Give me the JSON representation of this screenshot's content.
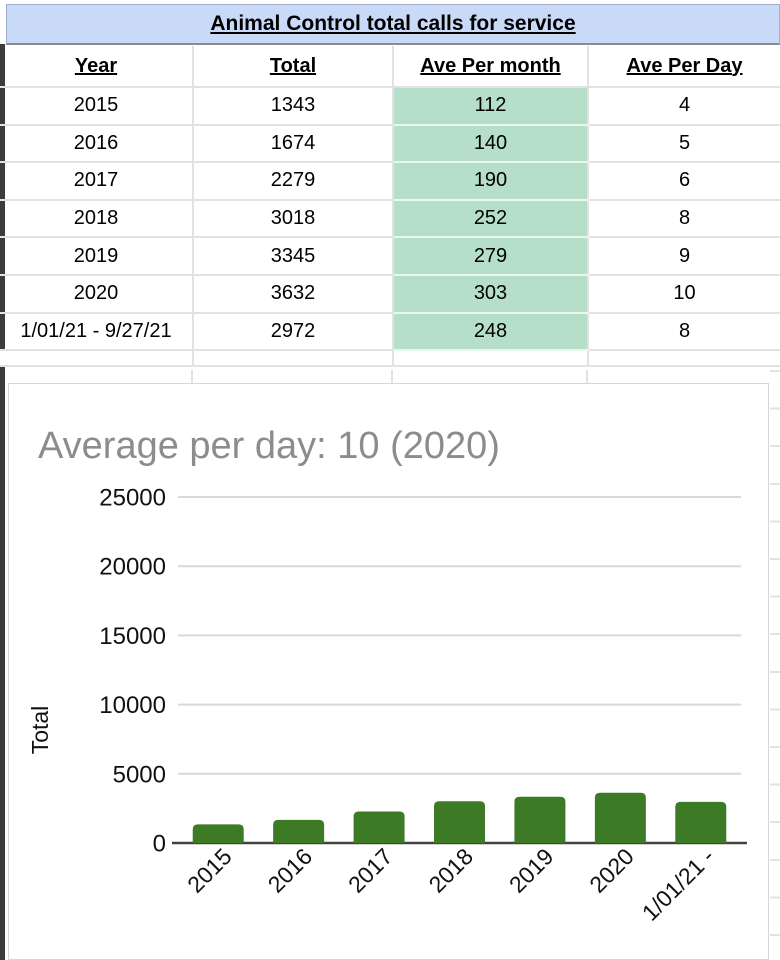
{
  "sheet": {
    "title": "Animal Control total calls for service",
    "columns": [
      "Year",
      "Total",
      "Ave Per month",
      "Ave Per Day"
    ],
    "rows": [
      [
        "2015",
        "1343",
        "112",
        "4"
      ],
      [
        "2016",
        "1674",
        "140",
        "5"
      ],
      [
        "2017",
        "2279",
        "190",
        "6"
      ],
      [
        "2018",
        "3018",
        "252",
        "8"
      ],
      [
        "2019",
        "3345",
        "279",
        "9"
      ],
      [
        "2020",
        "3632",
        "303",
        "10"
      ],
      [
        "1/01/21 - 9/27/21",
        "2972",
        "248",
        "8"
      ]
    ],
    "highlight_column": 2,
    "colors": {
      "title_bg": "#c9daf8",
      "highlight_bg": "#b5dfc9",
      "gridline": "#e2e2e2"
    }
  },
  "chart_data": {
    "type": "bar",
    "title": "Average per day: 10 (2020)",
    "categories": [
      "2015",
      "2016",
      "2017",
      "2018",
      "2019",
      "2020",
      "1/01/21 -"
    ],
    "values": [
      1343,
      1674,
      2279,
      3018,
      3345,
      3632,
      2972
    ],
    "xlabel": "",
    "ylabel": "Total",
    "yticks": [
      0,
      5000,
      10000,
      15000,
      20000,
      25000
    ],
    "ylim": [
      0,
      25000
    ],
    "grid": true,
    "legend": "none",
    "bar_color": "#3c7a25",
    "title_color": "#8c8c8c",
    "axis_text_color": "#111111",
    "gridline_color": "#d9d9d9",
    "baseline_color": "#424242"
  }
}
